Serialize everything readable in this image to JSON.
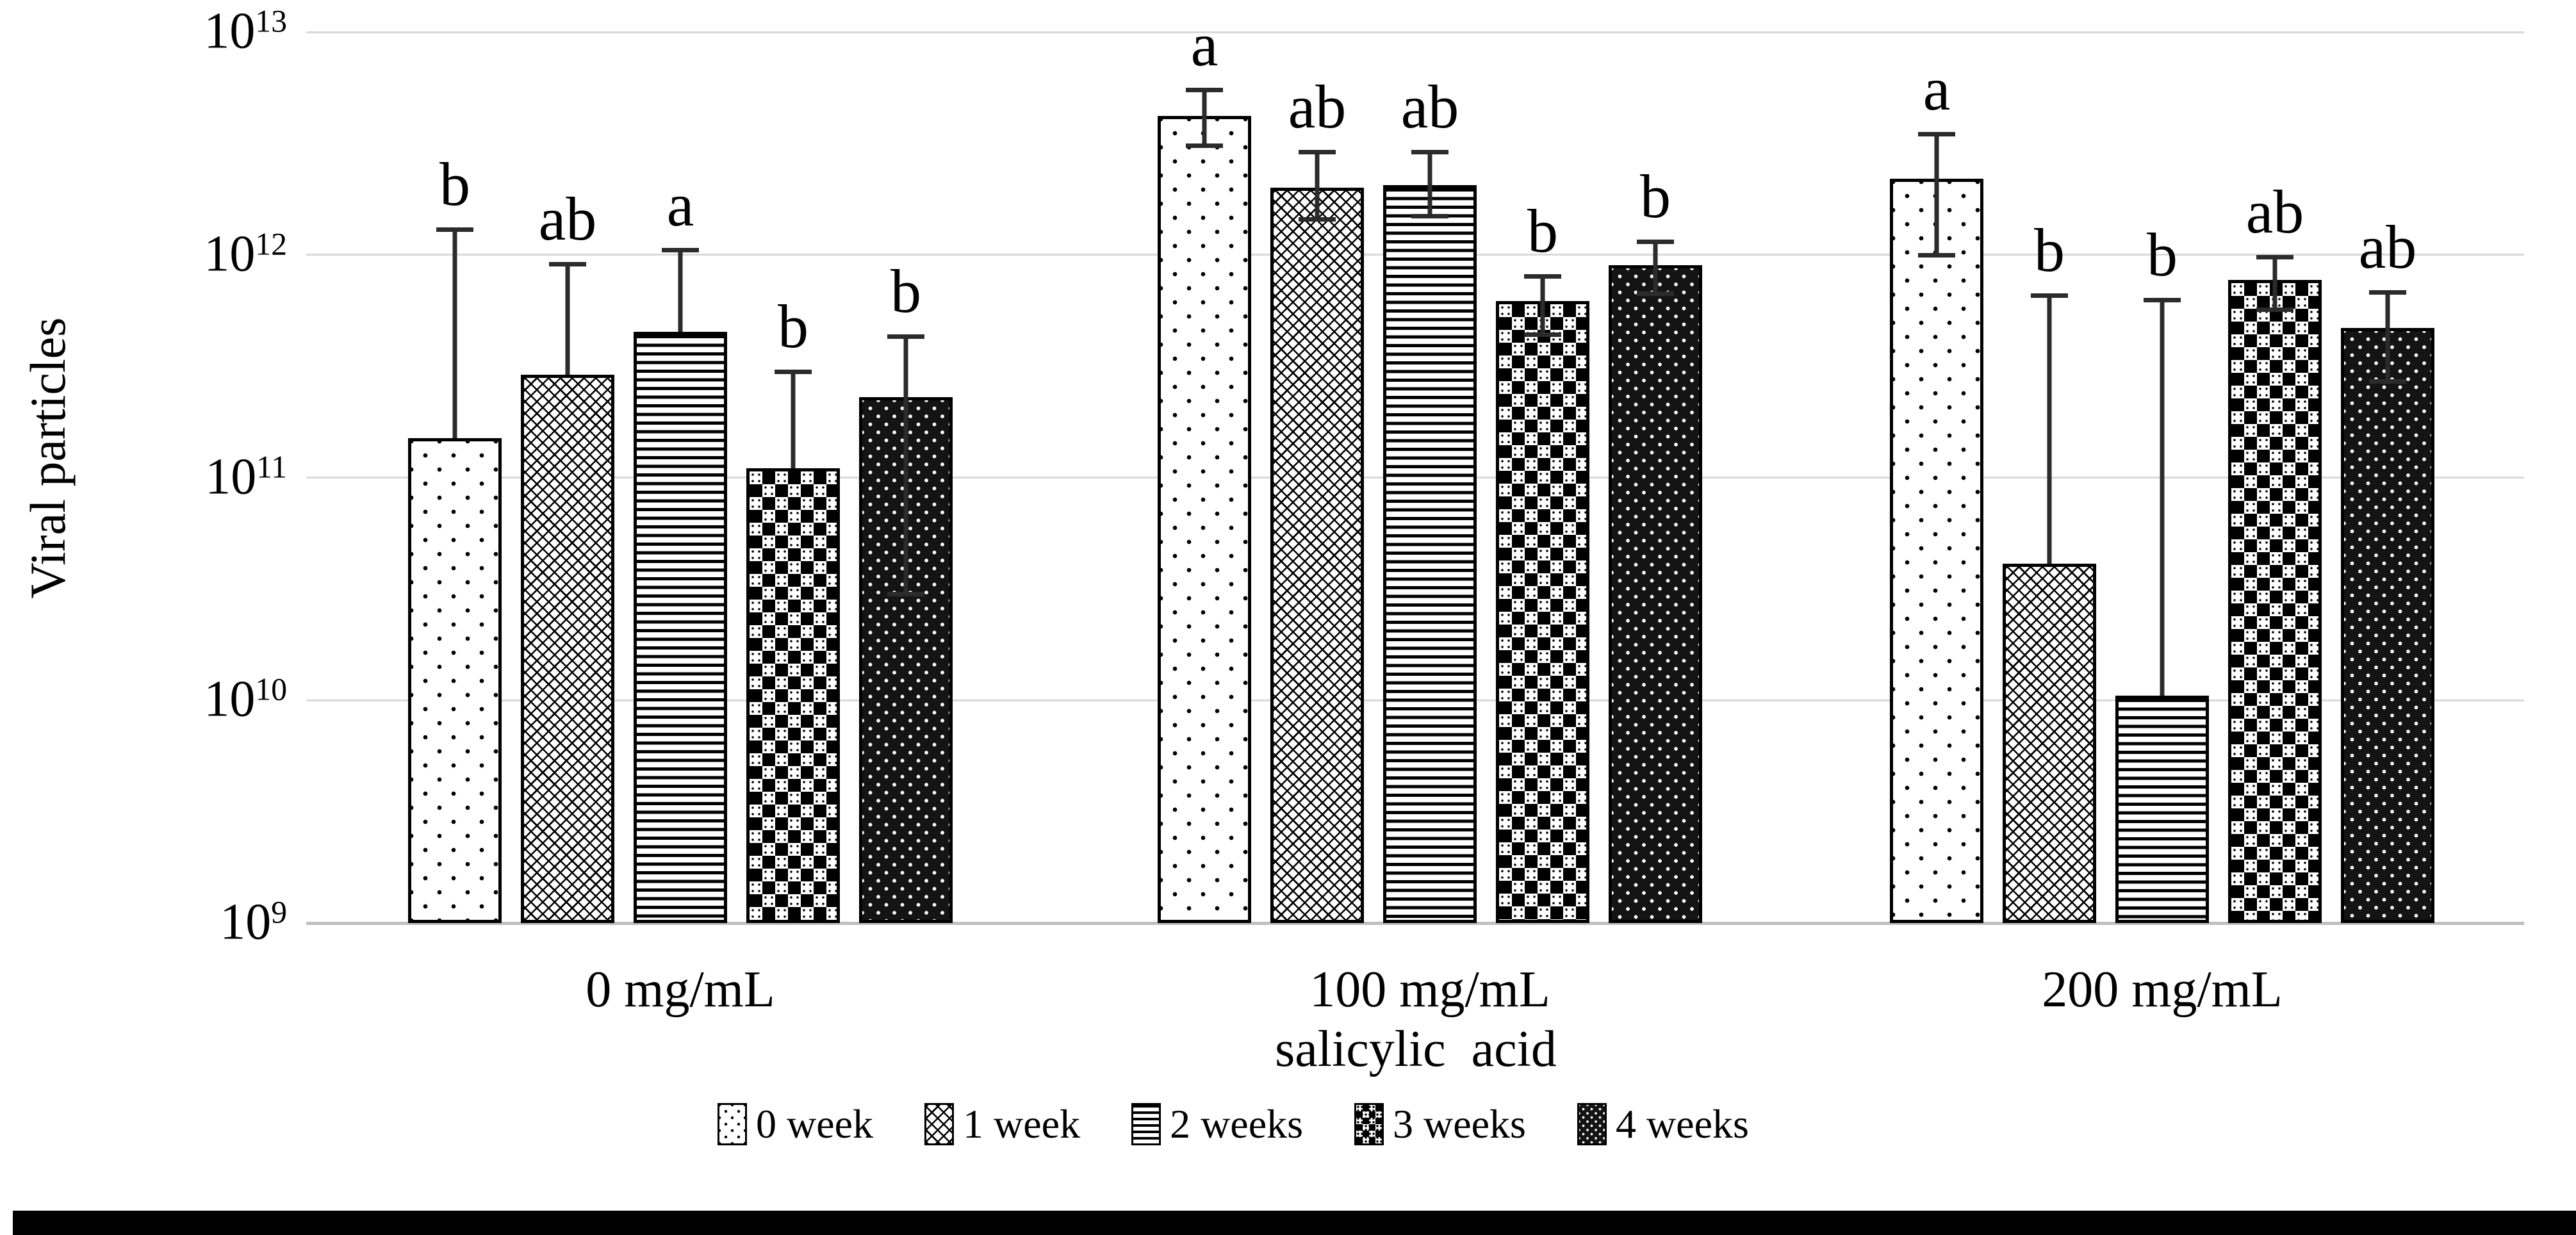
{
  "accent_colors": {
    "grid": "#d9d9d9",
    "axis_line": "#c0c0c0",
    "ink": "#000000",
    "error_bar": "#2b2b2b",
    "bottom_bar": "#000000"
  },
  "y_axis": {
    "label": "Viral particles",
    "tick_exponents": [
      9,
      10,
      11,
      12,
      13
    ],
    "tick_base": "10"
  },
  "x_axis": {
    "label": "salicylic  acid",
    "categories": [
      "0 mg/mL",
      "100 mg/mL",
      "200 mg/mL"
    ]
  },
  "legend": {
    "position": "bottom",
    "items": [
      "0 week",
      "1 week",
      "2 weeks",
      "3 weeks",
      "4 weeks"
    ]
  },
  "chart_data": {
    "type": "bar",
    "log_scale": true,
    "title": "",
    "xlabel": "salicylic  acid",
    "ylabel": "Viral particles",
    "ylim": [
      1000000000.0,
      10000000000000.0
    ],
    "grid": true,
    "legend_position": "bottom",
    "categories": [
      "0 mg/mL",
      "100 mg/mL",
      "200 mg/mL"
    ],
    "series": [
      {
        "name": "0 week",
        "pattern": "white-dots",
        "values": [
          150000000000.0,
          4200000000000.0,
          2200000000000.0
        ],
        "err_high": [
          1300000000000.0,
          5500000000000.0,
          3500000000000.0
        ],
        "err_low": [
          null,
          3100000000000.0,
          1000000000000.0
        ],
        "letters": [
          "b",
          "a",
          "a"
        ]
      },
      {
        "name": "1 week",
        "pattern": "diamond-crosshatch",
        "values": [
          290000000000.0,
          2000000000000.0,
          41000000000.0
        ],
        "err_high": [
          910000000000.0,
          2900000000000.0,
          660000000000.0
        ],
        "err_low": [
          null,
          1450000000000.0,
          null
        ],
        "letters": [
          "ab",
          "ab",
          "b"
        ]
      },
      {
        "name": "2 weeks",
        "pattern": "horizontal-lines",
        "values": [
          450000000000.0,
          2050000000000.0,
          10500000000.0
        ],
        "err_high": [
          1050000000000.0,
          2900000000000.0,
          630000000000.0
        ],
        "err_low": [
          null,
          1500000000000.0,
          null
        ],
        "letters": [
          "a",
          "ab",
          "b"
        ]
      },
      {
        "name": "3 weeks",
        "pattern": "checkerboard",
        "values": [
          110000000000.0,
          620000000000.0,
          770000000000.0
        ],
        "err_high": [
          300000000000.0,
          800000000000.0,
          980000000000.0
        ],
        "err_low": [
          null,
          440000000000.0,
          570000000000.0
        ],
        "letters": [
          "b",
          "b",
          "ab"
        ]
      },
      {
        "name": "4 weeks",
        "pattern": "black-white-dots",
        "values": [
          230000000000.0,
          900000000000.0,
          470000000000.0
        ],
        "err_high": [
          430000000000.0,
          1150000000000.0,
          680000000000.0
        ],
        "err_low": [
          30000000000.0,
          670000000000.0,
          270000000000.0
        ],
        "letters": [
          "b",
          "b",
          "ab"
        ]
      }
    ]
  }
}
